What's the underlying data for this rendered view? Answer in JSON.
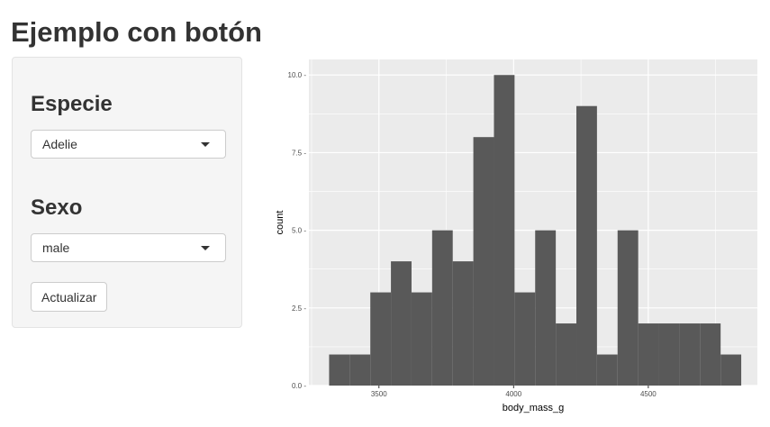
{
  "header": {
    "title": "Ejemplo con botón"
  },
  "sidebar": {
    "species_label": "Especie",
    "species_selected": "Adelie",
    "sex_label": "Sexo",
    "sex_selected": "male",
    "update_button": "Actualizar"
  },
  "colors": {
    "panel_bg": "#ebebeb",
    "bar_fill": "#595959",
    "grid": "#ffffff",
    "sidebar_bg": "#f5f5f5"
  },
  "chart_data": {
    "type": "bar",
    "xlabel": "body_mass_g",
    "ylabel": "count",
    "xlim": [
      3240,
      4905
    ],
    "ylim": [
      0,
      10.5
    ],
    "x_ticks": [
      3500,
      4000,
      4500
    ],
    "x_tick_labels": [
      "3500",
      "4000",
      "4500"
    ],
    "y_ticks": [
      0,
      2.5,
      5,
      7.5,
      10
    ],
    "y_tick_labels": [
      "0.0 -",
      "2.5 -",
      "5.0 -",
      "7.5 -",
      "10.0 -"
    ],
    "grid": true,
    "bins": [
      {
        "x0": 3315,
        "x1": 3391.5,
        "count": 1
      },
      {
        "x0": 3391.5,
        "x1": 3468,
        "count": 1
      },
      {
        "x0": 3468,
        "x1": 3544.5,
        "count": 3
      },
      {
        "x0": 3544.5,
        "x1": 3621,
        "count": 4
      },
      {
        "x0": 3621,
        "x1": 3697.5,
        "count": 3
      },
      {
        "x0": 3697.5,
        "x1": 3774,
        "count": 5
      },
      {
        "x0": 3774,
        "x1": 3850.5,
        "count": 4
      },
      {
        "x0": 3850.5,
        "x1": 3927,
        "count": 8
      },
      {
        "x0": 3927,
        "x1": 4003.5,
        "count": 10
      },
      {
        "x0": 4003.5,
        "x1": 4080,
        "count": 3
      },
      {
        "x0": 4080,
        "x1": 4156.5,
        "count": 5
      },
      {
        "x0": 4156.5,
        "x1": 4233,
        "count": 2
      },
      {
        "x0": 4233,
        "x1": 4309.5,
        "count": 9
      },
      {
        "x0": 4309.5,
        "x1": 4386,
        "count": 1
      },
      {
        "x0": 4386,
        "x1": 4462.5,
        "count": 5
      },
      {
        "x0": 4462.5,
        "x1": 4539,
        "count": 2
      },
      {
        "x0": 4539,
        "x1": 4615.5,
        "count": 2
      },
      {
        "x0": 4615.5,
        "x1": 4692,
        "count": 2
      },
      {
        "x0": 4692,
        "x1": 4768.5,
        "count": 2
      },
      {
        "x0": 4768.5,
        "x1": 4845,
        "count": 1
      }
    ]
  }
}
